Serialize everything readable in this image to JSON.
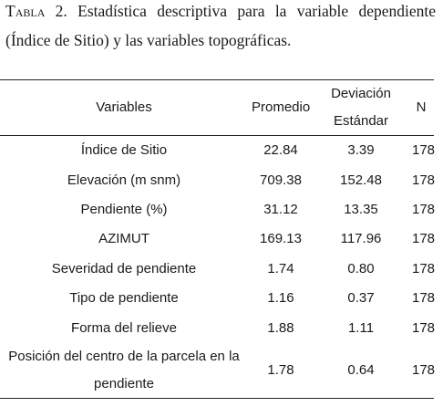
{
  "caption": {
    "label": "Tabla 2.",
    "text": "Estadística descriptiva para la variable dependiente (Índice de Sitio) y las variables topográficas."
  },
  "table": {
    "columns": [
      "Variables",
      "Promedio",
      "Deviación Estándar",
      "N"
    ],
    "rows": [
      [
        "Índice de Sitio",
        "22.84",
        "3.39",
        "178"
      ],
      [
        "Elevación (m snm)",
        "709.38",
        "152.48",
        "178"
      ],
      [
        "Pendiente (%)",
        "31.12",
        "13.35",
        "178"
      ],
      [
        "AZIMUT",
        "169.13",
        "117.96",
        "178"
      ],
      [
        "Severidad de pendiente",
        "1.74",
        "0.80",
        "178"
      ],
      [
        "Tipo de pendiente",
        "1.16",
        "0.37",
        "178"
      ],
      [
        "Forma del relieve",
        "1.88",
        "1.11",
        "178"
      ],
      [
        "Posición del centro de la parcela en la pendiente",
        "1.78",
        "0.64",
        "178"
      ]
    ]
  }
}
